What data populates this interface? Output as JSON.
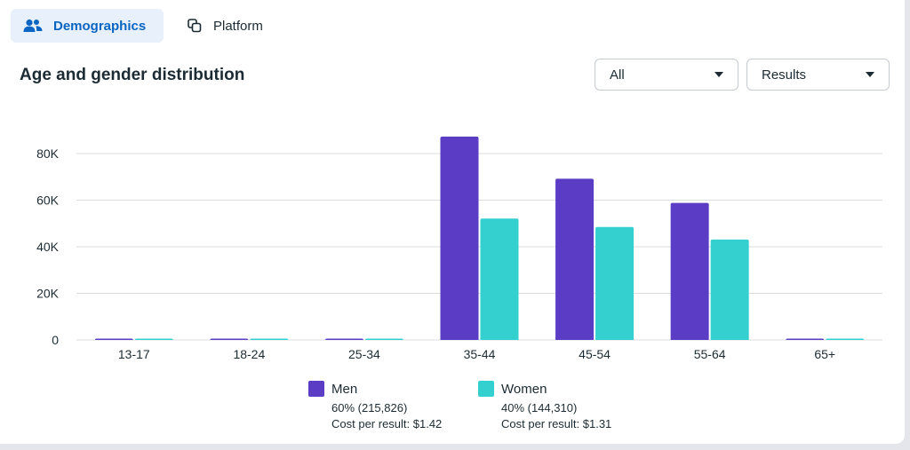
{
  "tabs": [
    {
      "label": "Demographics",
      "active": true
    },
    {
      "label": "Platform",
      "active": false
    }
  ],
  "section_title": "Age and gender distribution",
  "filters": {
    "audience": "All",
    "metric": "Results"
  },
  "colors": {
    "men": "#5b3cc4",
    "women": "#34cfcf",
    "accent": "#0a66c2"
  },
  "legend": [
    {
      "name": "Men",
      "share": "60% (215,826)",
      "cost": "Cost per result: $1.42"
    },
    {
      "name": "Women",
      "share": "40% (144,310)",
      "cost": "Cost per result: $1.31"
    }
  ],
  "chart_data": {
    "type": "bar",
    "categories": [
      "13-17",
      "18-24",
      "25-34",
      "35-44",
      "45-54",
      "55-64",
      "65+"
    ],
    "series": [
      {
        "name": "Men",
        "values": [
          150,
          150,
          150,
          87300,
          69200,
          58800,
          150
        ]
      },
      {
        "name": "Women",
        "values": [
          100,
          100,
          100,
          52100,
          48500,
          43100,
          100
        ]
      }
    ],
    "y_ticks": [
      "0",
      "20K",
      "40K",
      "60K",
      "80K"
    ],
    "y_tick_values": [
      0,
      20000,
      40000,
      60000,
      80000
    ],
    "ylim": [
      0,
      80000
    ],
    "grid": true,
    "legend_position": "bottom"
  }
}
